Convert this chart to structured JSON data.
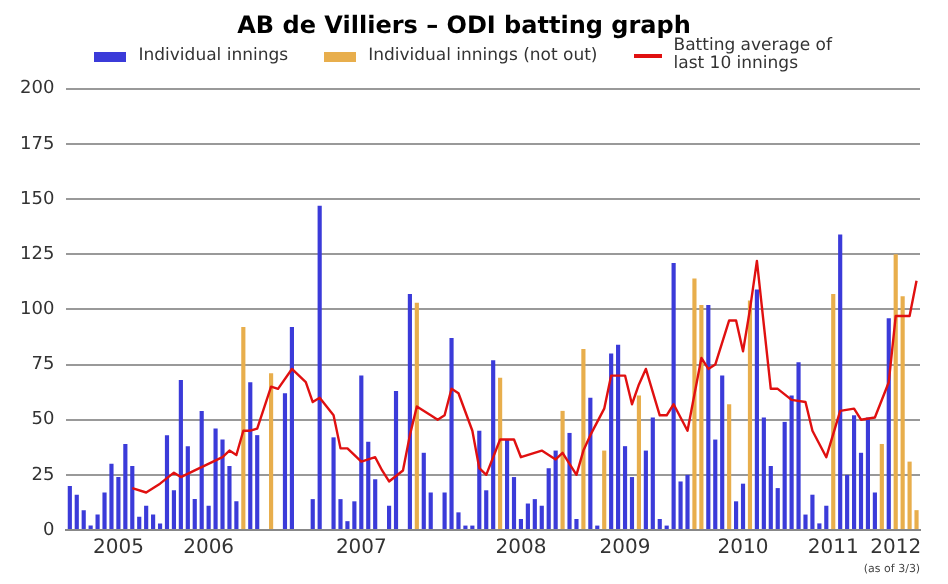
{
  "chart_data": {
    "type": "bar",
    "title": "AB de Villiers – ODI batting graph",
    "categories": [
      null,
      null,
      null,
      null,
      null,
      null,
      null,
      "2005",
      null,
      null,
      null,
      null,
      null,
      null,
      null,
      null,
      null,
      null,
      null,
      null,
      "2006",
      null,
      null,
      null,
      null,
      null,
      null,
      null,
      null,
      null,
      null,
      null,
      null,
      null,
      null,
      null,
      null,
      null,
      null,
      null,
      null,
      null,
      "2007",
      null,
      null,
      null,
      null,
      null,
      null,
      null,
      null,
      null,
      null,
      null,
      null,
      null,
      null,
      null,
      null,
      null,
      null,
      null,
      null,
      null,
      null,
      "2008",
      null,
      null,
      null,
      null,
      null,
      null,
      null,
      null,
      null,
      null,
      null,
      null,
      null,
      null,
      "2009",
      null,
      null,
      null,
      null,
      null,
      null,
      null,
      null,
      null,
      null,
      null,
      null,
      null,
      null,
      null,
      null,
      "2010",
      null,
      null,
      null,
      null,
      null,
      null,
      null,
      null,
      null,
      null,
      null,
      null,
      "2011",
      null,
      null,
      null,
      null,
      null,
      null,
      null,
      null,
      "2012",
      null,
      null,
      null
    ],
    "series": [
      {
        "name": "Individual innings",
        "color": "#3b3bd9",
        "values": [
          20,
          16,
          9,
          2,
          7,
          17,
          30,
          24,
          39,
          29,
          6,
          11,
          7,
          3,
          43,
          18,
          68,
          38,
          14,
          54,
          11,
          46,
          41,
          29,
          13,
          null,
          67,
          43,
          0,
          null,
          0,
          62,
          92,
          0,
          0,
          14,
          147,
          0,
          42,
          14,
          4,
          13,
          70,
          40,
          23,
          0,
          11,
          63,
          0,
          107,
          null,
          35,
          17,
          0,
          17,
          87,
          8,
          2,
          2,
          45,
          18,
          77,
          null,
          41,
          24,
          5,
          12,
          14,
          11,
          28,
          36,
          null,
          44,
          5,
          null,
          60,
          2,
          null,
          80,
          84,
          38,
          24,
          null,
          36,
          51,
          5,
          2,
          121,
          22,
          25,
          null,
          null,
          102,
          41,
          70,
          null,
          13,
          21,
          null,
          109,
          51,
          29,
          19,
          49,
          61,
          76,
          7,
          16,
          3,
          11,
          null,
          134,
          25,
          52,
          35,
          51,
          17,
          null,
          96,
          null,
          null,
          null,
          null
        ]
      },
      {
        "name": "Individual innings (not out)",
        "color": "#e8ae4c",
        "values": [
          null,
          null,
          null,
          null,
          null,
          null,
          null,
          null,
          null,
          null,
          null,
          null,
          null,
          null,
          null,
          null,
          null,
          null,
          null,
          null,
          null,
          null,
          null,
          null,
          null,
          92,
          null,
          null,
          null,
          71,
          null,
          null,
          null,
          null,
          null,
          null,
          null,
          null,
          null,
          null,
          null,
          null,
          null,
          null,
          null,
          null,
          null,
          null,
          null,
          null,
          103,
          null,
          null,
          null,
          null,
          null,
          null,
          null,
          null,
          null,
          null,
          null,
          69,
          null,
          null,
          null,
          null,
          null,
          null,
          null,
          null,
          54,
          null,
          null,
          82,
          null,
          null,
          36,
          null,
          null,
          null,
          null,
          61,
          null,
          null,
          null,
          null,
          null,
          null,
          null,
          114,
          102,
          null,
          null,
          null,
          57,
          null,
          null,
          104,
          null,
          null,
          null,
          null,
          null,
          null,
          null,
          null,
          null,
          null,
          null,
          107,
          null,
          null,
          null,
          null,
          null,
          null,
          39,
          null,
          125,
          106,
          31,
          9
        ]
      },
      {
        "name": "Batting average of last 10 innings",
        "type": "line",
        "color": "#e01010",
        "values": [
          null,
          null,
          null,
          null,
          null,
          null,
          null,
          null,
          null,
          19,
          null,
          17,
          null,
          21,
          null,
          26,
          24,
          null,
          27,
          null,
          null,
          null,
          33,
          36,
          34,
          45,
          45,
          46,
          null,
          65,
          64,
          null,
          73,
          null,
          67,
          58,
          60,
          null,
          52,
          37,
          37,
          null,
          31,
          null,
          33,
          27,
          22,
          null,
          27,
          43,
          56,
          null,
          52,
          50,
          52,
          64,
          62,
          null,
          45,
          28,
          25,
          null,
          41,
          null,
          41,
          33,
          null,
          null,
          36,
          null,
          32,
          35,
          null,
          25,
          36,
          43,
          null,
          55,
          70,
          null,
          70,
          57,
          66,
          73,
          null,
          52,
          52,
          57,
          null,
          45,
          null,
          78,
          73,
          75,
          null,
          95,
          95,
          81,
          100,
          122,
          null,
          64,
          64,
          null,
          59,
          null,
          58,
          45,
          null,
          33,
          null,
          54,
          null,
          55,
          50,
          null,
          51,
          null,
          67,
          97,
          null,
          97,
          113
        ]
      }
    ],
    "ylim": [
      0,
      200
    ],
    "yticks": [
      0,
      25,
      50,
      75,
      100,
      125,
      150,
      175,
      200
    ],
    "grid": "y",
    "legend": "top",
    "marker": "none",
    "line_style": "solid",
    "annotations": [
      "(as of 3/3)"
    ]
  }
}
